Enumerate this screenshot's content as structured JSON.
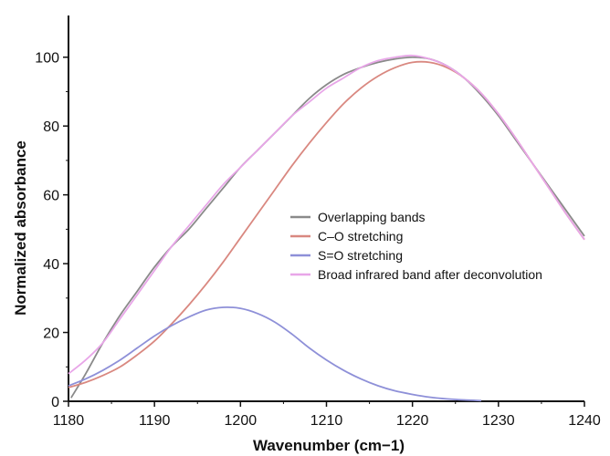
{
  "chart_data": {
    "type": "line",
    "xlabel": "Wavenumber (cm−1)",
    "ylabel": "Normalized absorbance",
    "xlim": [
      1180,
      1240
    ],
    "ylim": [
      0,
      110
    ],
    "x_ticks": [
      1180,
      1190,
      1200,
      1210,
      1220,
      1230,
      1240
    ],
    "y_ticks": [
      0,
      20,
      40,
      60,
      80,
      100
    ],
    "grid": false,
    "legend_position": "center-right",
    "series": [
      {
        "name": "Overlapping bands",
        "color": "#8a8a8a",
        "x": [
          1180.3,
          1182,
          1184,
          1186,
          1188,
          1190,
          1192,
          1194,
          1196,
          1198,
          1200,
          1202,
          1204,
          1206,
          1208,
          1210,
          1212,
          1214,
          1216,
          1218,
          1220,
          1222,
          1224,
          1226,
          1228,
          1230,
          1232,
          1234,
          1236,
          1238,
          1240
        ],
        "y": [
          1,
          8,
          17,
          25,
          32,
          39,
          45,
          50,
          56,
          62,
          68,
          73,
          78,
          83,
          88,
          92,
          95,
          97,
          98.5,
          99.5,
          100,
          99.5,
          97.5,
          94,
          89,
          83,
          76,
          69,
          62,
          55,
          48
        ]
      },
      {
        "name": "C–O stretching",
        "color": "#d98880",
        "x": [
          1180,
          1182,
          1184,
          1186,
          1188,
          1190,
          1192,
          1194,
          1196,
          1198,
          1200,
          1202,
          1204,
          1206,
          1208,
          1210,
          1212,
          1214,
          1216,
          1218,
          1220,
          1222,
          1224,
          1226,
          1228,
          1230,
          1232,
          1234,
          1236,
          1238,
          1240
        ],
        "y": [
          4,
          5.5,
          7.5,
          10,
          13.5,
          17.5,
          22.5,
          28,
          34,
          40.5,
          47.5,
          54.5,
          61.5,
          68.5,
          75,
          81,
          86.5,
          91,
          94.5,
          97,
          98.5,
          98.5,
          97,
          94,
          89.5,
          83.5,
          76.5,
          69,
          61.5,
          54,
          47
        ]
      },
      {
        "name": "S=O stretching",
        "color": "#8e90d8",
        "x": [
          1180,
          1182,
          1184,
          1186,
          1188,
          1190,
          1192,
          1194,
          1196,
          1198,
          1200,
          1202,
          1204,
          1206,
          1208,
          1210,
          1212,
          1214,
          1216,
          1218,
          1220,
          1222,
          1224,
          1226,
          1228
        ],
        "y": [
          4.5,
          6.5,
          9,
          12,
          15.5,
          19,
          22,
          24.5,
          26.5,
          27.3,
          27,
          25.5,
          23,
          19.5,
          15.5,
          12,
          9,
          6.5,
          4.5,
          3,
          2,
          1.2,
          0.7,
          0.4,
          0.2
        ]
      },
      {
        "name": "Broad infrared band after deconvolution",
        "color": "#e8a6e8",
        "x": [
          1180,
          1182,
          1184,
          1186,
          1188,
          1190,
          1192,
          1194,
          1196,
          1198,
          1200,
          1202,
          1204,
          1206,
          1208,
          1210,
          1212,
          1214,
          1216,
          1218,
          1220,
          1222,
          1224,
          1226,
          1228,
          1230,
          1232,
          1234,
          1236,
          1238,
          1240
        ],
        "y": [
          8,
          12,
          17,
          24,
          31,
          38,
          45,
          51,
          57,
          63,
          68,
          73,
          78,
          83,
          87,
          91,
          94,
          97,
          99,
          100,
          100.5,
          99.5,
          97.5,
          94,
          89.5,
          83.5,
          76.5,
          69,
          61.5,
          54,
          47
        ]
      }
    ]
  }
}
